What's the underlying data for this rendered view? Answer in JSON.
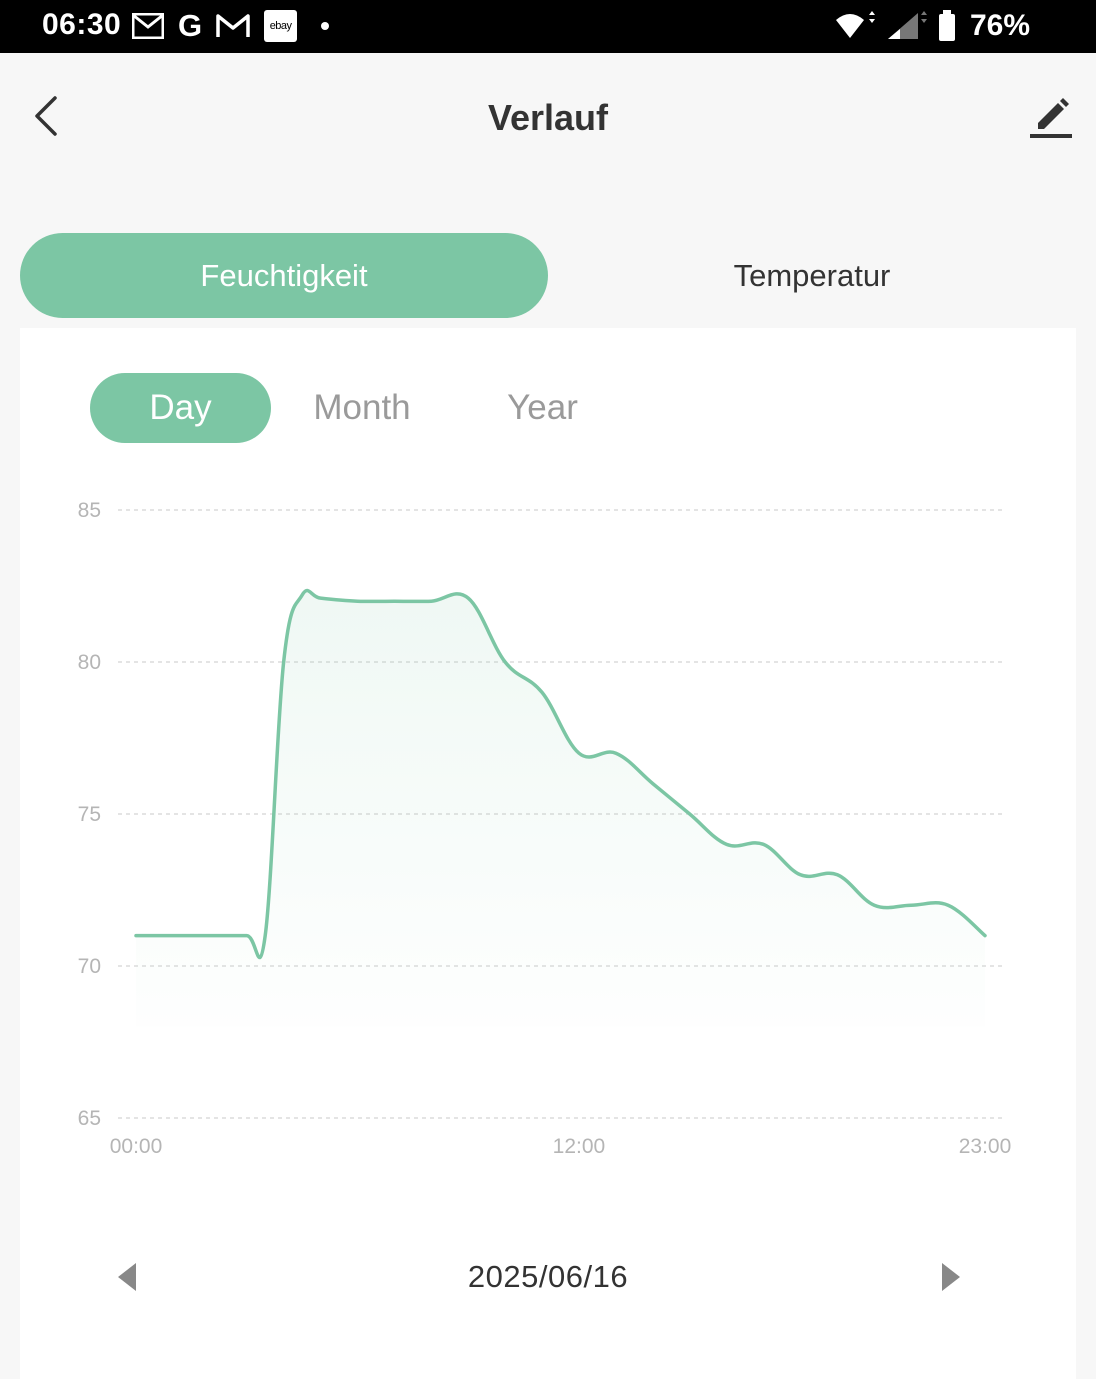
{
  "status_bar": {
    "time": "06:30",
    "battery": "76%",
    "icons": [
      "mail-icon",
      "google-icon",
      "gmail-icon",
      "ebay-icon",
      "notification-dot",
      "wifi-icon",
      "signal-icon",
      "battery-icon"
    ],
    "ebay_label": "ebay"
  },
  "header": {
    "title": "Verlauf"
  },
  "tabs": {
    "humidity": "Feuchtigkeit",
    "temperature": "Temperatur"
  },
  "range_tabs": {
    "day": "Day",
    "month": "Month",
    "year": "Year"
  },
  "date_nav": {
    "date": "2025/06/16"
  },
  "colors": {
    "accent": "#7cc6a4",
    "line": "#7cc6a4",
    "grid": "#dcdcdc",
    "tick": "#b5b5b5"
  },
  "chart_data": {
    "type": "area",
    "title": "",
    "xlabel": "",
    "ylabel": "",
    "x": [
      0,
      1,
      2,
      3,
      3.5,
      4,
      4.5,
      5,
      6,
      7,
      8,
      9,
      10,
      11,
      12,
      13,
      14,
      15,
      16,
      17,
      18,
      19,
      20,
      21,
      22,
      23
    ],
    "values": [
      71,
      71,
      71,
      71,
      71,
      80,
      82.2,
      82.1,
      82,
      82,
      82,
      82.1,
      80,
      79,
      77,
      77,
      76,
      75,
      74,
      74,
      73,
      73,
      72,
      72,
      72,
      71
    ],
    "x_ticks": [
      {
        "value": 0,
        "label": "00:00"
      },
      {
        "value": 12,
        "label": "12:00"
      },
      {
        "value": 23,
        "label": "23:00"
      }
    ],
    "y_ticks": [
      85,
      80,
      75,
      70,
      65
    ],
    "xlim": [
      0,
      23
    ],
    "ylim": [
      65,
      85
    ],
    "grid": true,
    "grid_style": "dashed"
  }
}
